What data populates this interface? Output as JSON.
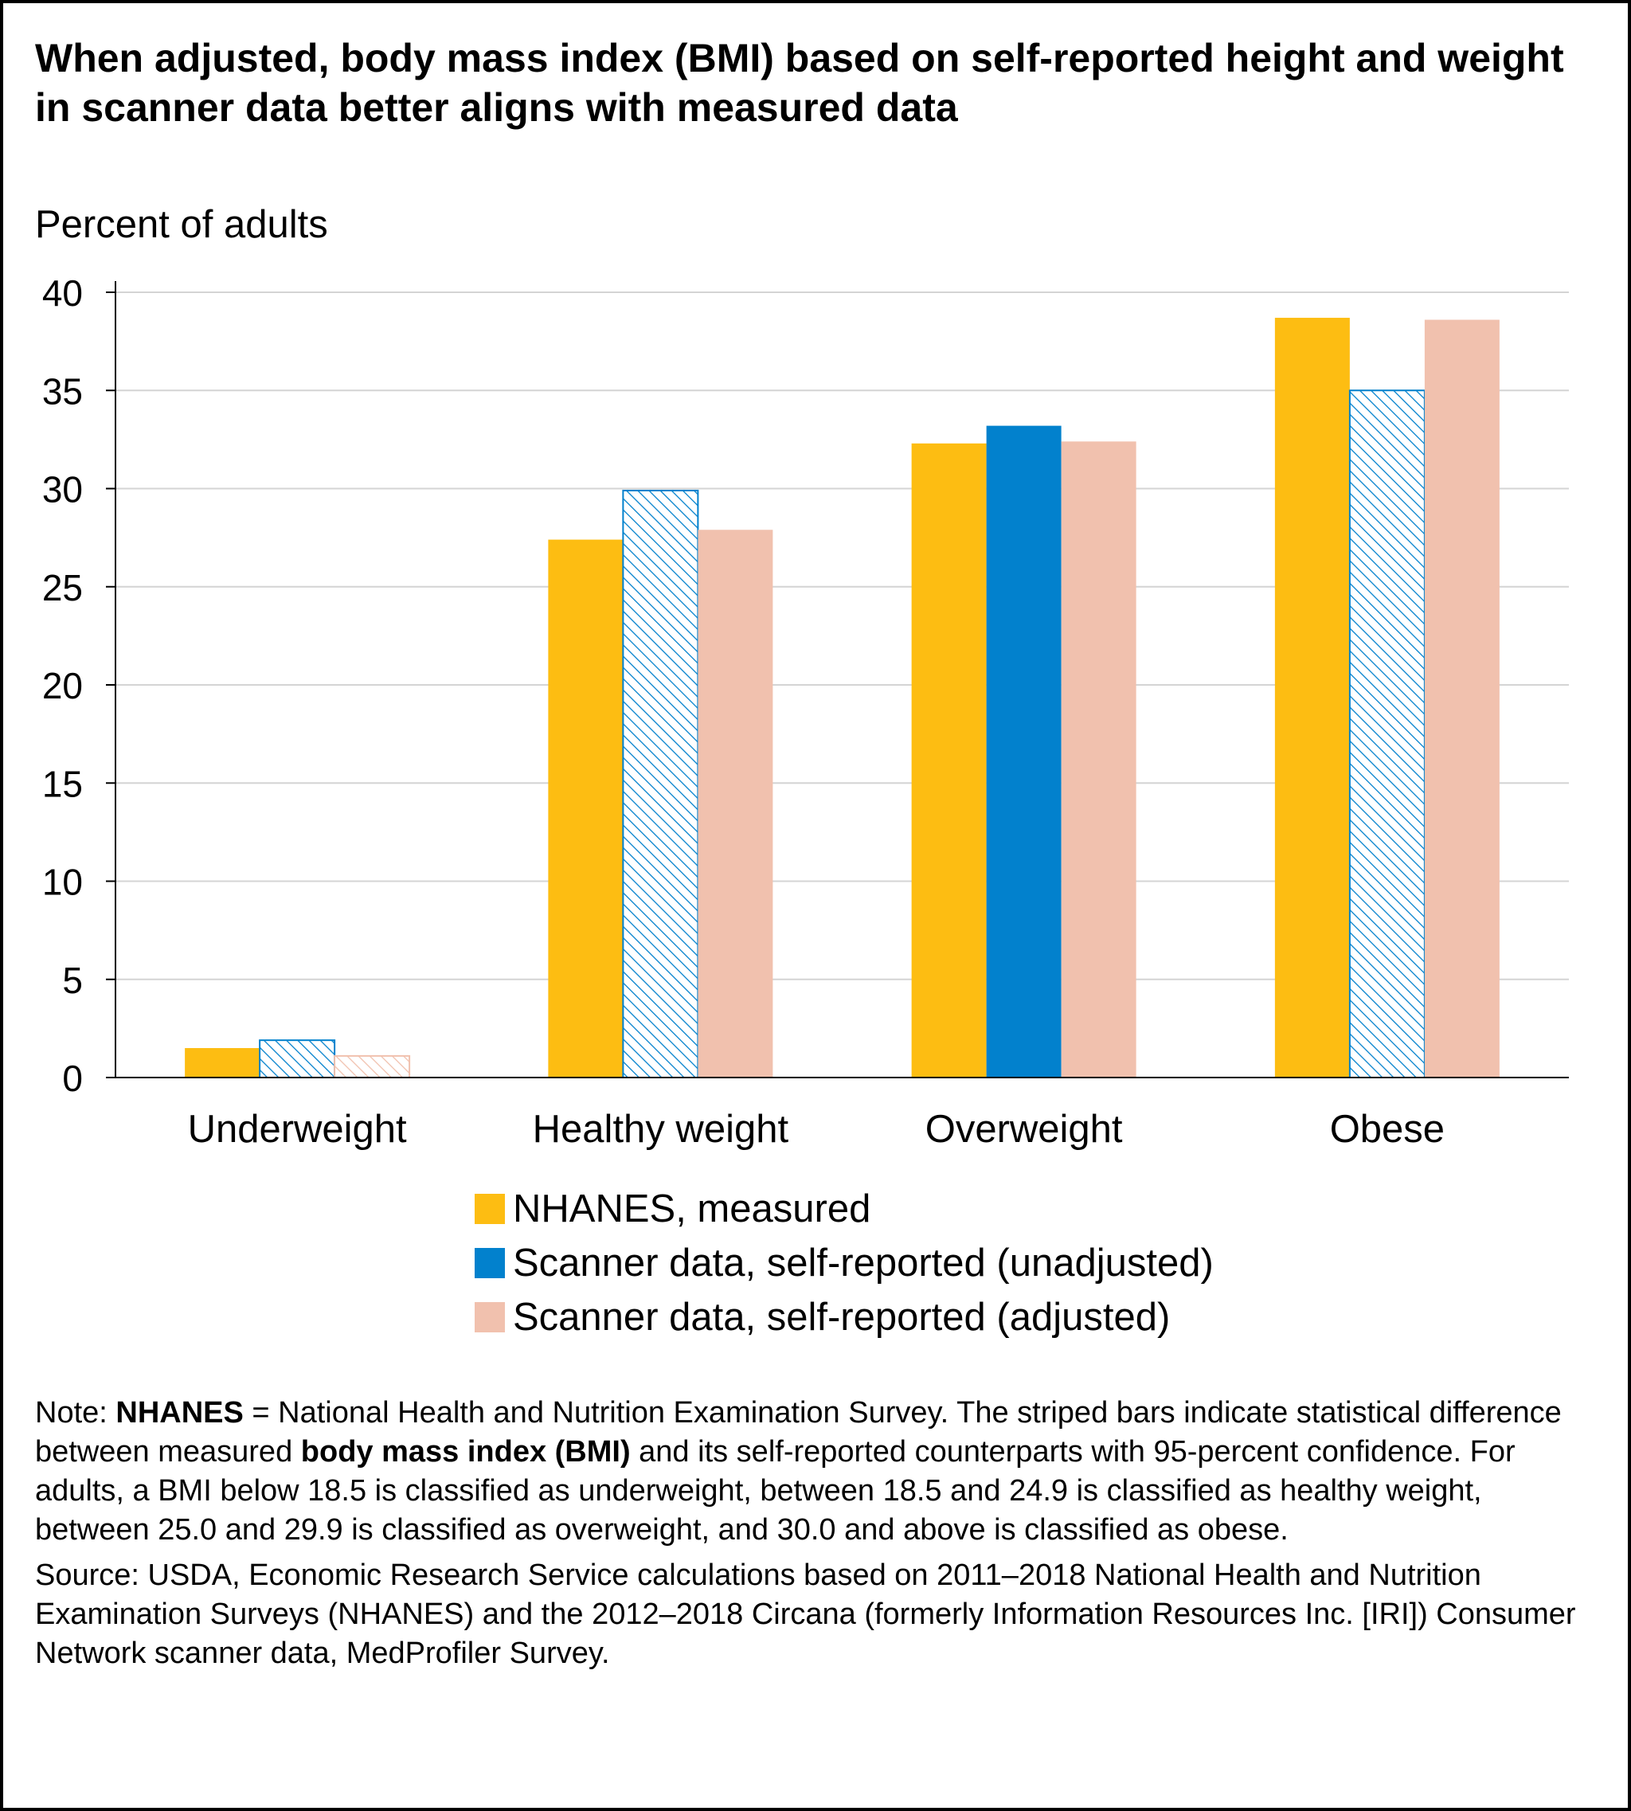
{
  "title": "When adjusted, body mass index (BMI) based on self-reported height and weight in scanner data better aligns with measured data",
  "chart_data": {
    "type": "bar",
    "title": "When adjusted, body mass index (BMI) based on self-reported height and weight in scanner data better aligns with measured data",
    "ylabel": "Percent of adults",
    "xlabel": "",
    "ylim": [
      0,
      40
    ],
    "yticks": [
      0,
      5,
      10,
      15,
      20,
      25,
      30,
      35,
      40
    ],
    "grid": true,
    "legend_position": "bottom",
    "categories": [
      "Underweight",
      "Healthy weight",
      "Overweight",
      "Obese"
    ],
    "series": [
      {
        "name": "NHANES, measured",
        "color": "#FDBD12",
        "values": [
          1.5,
          27.4,
          32.3,
          38.7
        ],
        "striped": [
          false,
          false,
          false,
          false
        ]
      },
      {
        "name": "Scanner data, self-reported (unadjusted)",
        "color": "#0281CD",
        "values": [
          1.9,
          29.9,
          33.2,
          35.0
        ],
        "striped": [
          true,
          true,
          false,
          true
        ]
      },
      {
        "name": "Scanner data, self-reported (adjusted)",
        "color": "#F1C1AE",
        "values": [
          1.1,
          27.9,
          32.4,
          38.6
        ],
        "striped": [
          true,
          false,
          false,
          false
        ]
      }
    ]
  },
  "notes": {
    "note_prefix": "Note: ",
    "note_term1": "NHANES",
    "note_part1": " = National Health and Nutrition Examination Survey. The striped bars indicate statistical difference between measured ",
    "note_term2": "body mass index (BMI)",
    "note_part2": " and its self-reported counterparts with 95-percent confidence. For adults, a BMI below 18.5 is classified as underweight, between 18.5 and 24.9 is classified as healthy weight, between 25.0 and 29.9 is classified as overweight, and 30.0 and above is classified as obese.",
    "source": "Source: USDA, Economic Research Service calculations based on 2011–2018 National Health and Nutrition Examination Surveys (NHANES) and the 2012–2018 Circana (formerly Information Resources Inc. [IRI]) Consumer Network scanner data, MedProfiler Survey."
  }
}
